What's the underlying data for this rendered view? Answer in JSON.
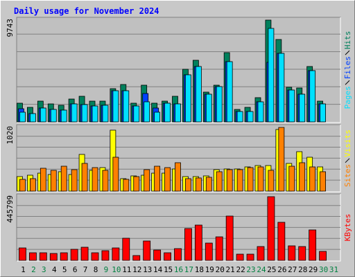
{
  "chart_data": [
    {
      "type": "bar",
      "title": "Daily usage for November 2024",
      "ylim": [
        0,
        9743
      ],
      "yticks": [
        9743
      ],
      "series": [
        {
          "name": "Hits",
          "color": "#00805c",
          "values": [
            1790,
            1392,
            1988,
            1723,
            1591,
            2187,
            2452,
            1988,
            1988,
            3181,
            3579,
            1790,
            3513,
            1790,
            1988,
            2452,
            5037,
            5899,
            2850,
            3513,
            6628,
            1193,
            1392,
            2320,
            9743,
            7887,
            3314,
            3248,
            5302,
            1988,
            null
          ]
        },
        {
          "name": "Files",
          "color": "#0040ff",
          "values": [
            1259,
            795,
            1326,
            1193,
            1127,
            1723,
            1657,
            1524,
            1591,
            2983,
            2983,
            1524,
            2717,
            1326,
            1790,
            1723,
            4507,
            5302,
            2651,
            3380,
            5766,
            994,
            994,
            1922,
            5700,
            6562,
            3049,
            2651,
            4905,
            1723,
            null
          ]
        },
        {
          "name": "Pages",
          "color": "#00e0ff",
          "values": [
            928,
            795,
            1326,
            1193,
            1127,
            1723,
            1657,
            1524,
            1591,
            2983,
            2983,
            1524,
            1922,
            928,
            1790,
            1723,
            4507,
            5302,
            2651,
            3380,
            5766,
            994,
            994,
            1922,
            8948,
            6562,
            3049,
            2651,
            4905,
            1723,
            null
          ]
        }
      ]
    },
    {
      "type": "bar",
      "ylim": [
        0,
        1020
      ],
      "yticks": [
        1020
      ],
      "series": [
        {
          "name": "Visits",
          "color": "#ffff00",
          "values": [
            233,
            255,
            288,
            266,
            311,
            266,
            588,
            333,
            377,
            976,
            200,
            244,
            255,
            288,
            288,
            355,
            233,
            233,
            244,
            344,
            355,
            355,
            388,
            410,
            410,
            987,
            444,
            632,
            543,
            388,
            null
          ]
        },
        {
          "name": "Sites",
          "color": "#ff8000",
          "values": [
            189,
            200,
            366,
            333,
            399,
            344,
            444,
            377,
            333,
            543,
            189,
            233,
            344,
            399,
            377,
            455,
            200,
            211,
            222,
            311,
            344,
            344,
            377,
            388,
            333,
            1020,
            399,
            455,
            388,
            311,
            null
          ]
        }
      ]
    },
    {
      "type": "bar",
      "ylim": [
        0,
        445799
      ],
      "yticks": [
        445799
      ],
      "categories": [
        "1",
        "2",
        "3",
        "4",
        "5",
        "6",
        "7",
        "8",
        "9",
        "10",
        "11",
        "12",
        "13",
        "14",
        "15",
        "16",
        "17",
        "18",
        "19",
        "20",
        "21",
        "22",
        "23",
        "24",
        "25",
        "26",
        "27",
        "28",
        "29",
        "30",
        "31"
      ],
      "category_label_colors": [
        "#000000",
        "#008040",
        "#008040",
        "#000000",
        "#000000",
        "#000000",
        "#000000",
        "#000000",
        "#008040",
        "#008040",
        "#000000",
        "#000000",
        "#000000",
        "#000000",
        "#000000",
        "#008040",
        "#008040",
        "#000000",
        "#000000",
        "#000000",
        "#000000",
        "#000000",
        "#008040",
        "#008040",
        "#000000",
        "#000000",
        "#000000",
        "#000000",
        "#000000",
        "#008040",
        "#008040"
      ],
      "series": [
        {
          "name": "KBytes",
          "color": "#ff0000",
          "values": [
            87228,
            53306,
            53306,
            48460,
            53306,
            77536,
            92074,
            53306,
            67844,
            87228,
            155072,
            33922,
            135688,
            72690,
            53306,
            82382,
            222916,
            247146,
            121150,
            164764,
            310144,
            43614,
            43614,
            96920,
            445799,
            266530,
            101766,
            96920,
            213224,
            62998,
            null
          ]
        }
      ]
    }
  ]
}
